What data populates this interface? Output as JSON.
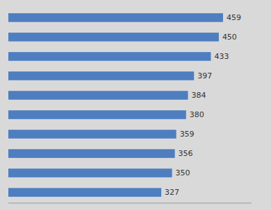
{
  "chart_data": {
    "type": "bar",
    "orientation": "horizontal",
    "categories": [
      null,
      null,
      null,
      null,
      null,
      null,
      null,
      null,
      null,
      null
    ],
    "values": [
      459,
      450,
      433,
      397,
      384,
      380,
      359,
      356,
      350,
      327
    ],
    "color": "#4E7EC0",
    "xlim": [
      0,
      520
    ],
    "data_labels": true,
    "tick_labels": false
  }
}
